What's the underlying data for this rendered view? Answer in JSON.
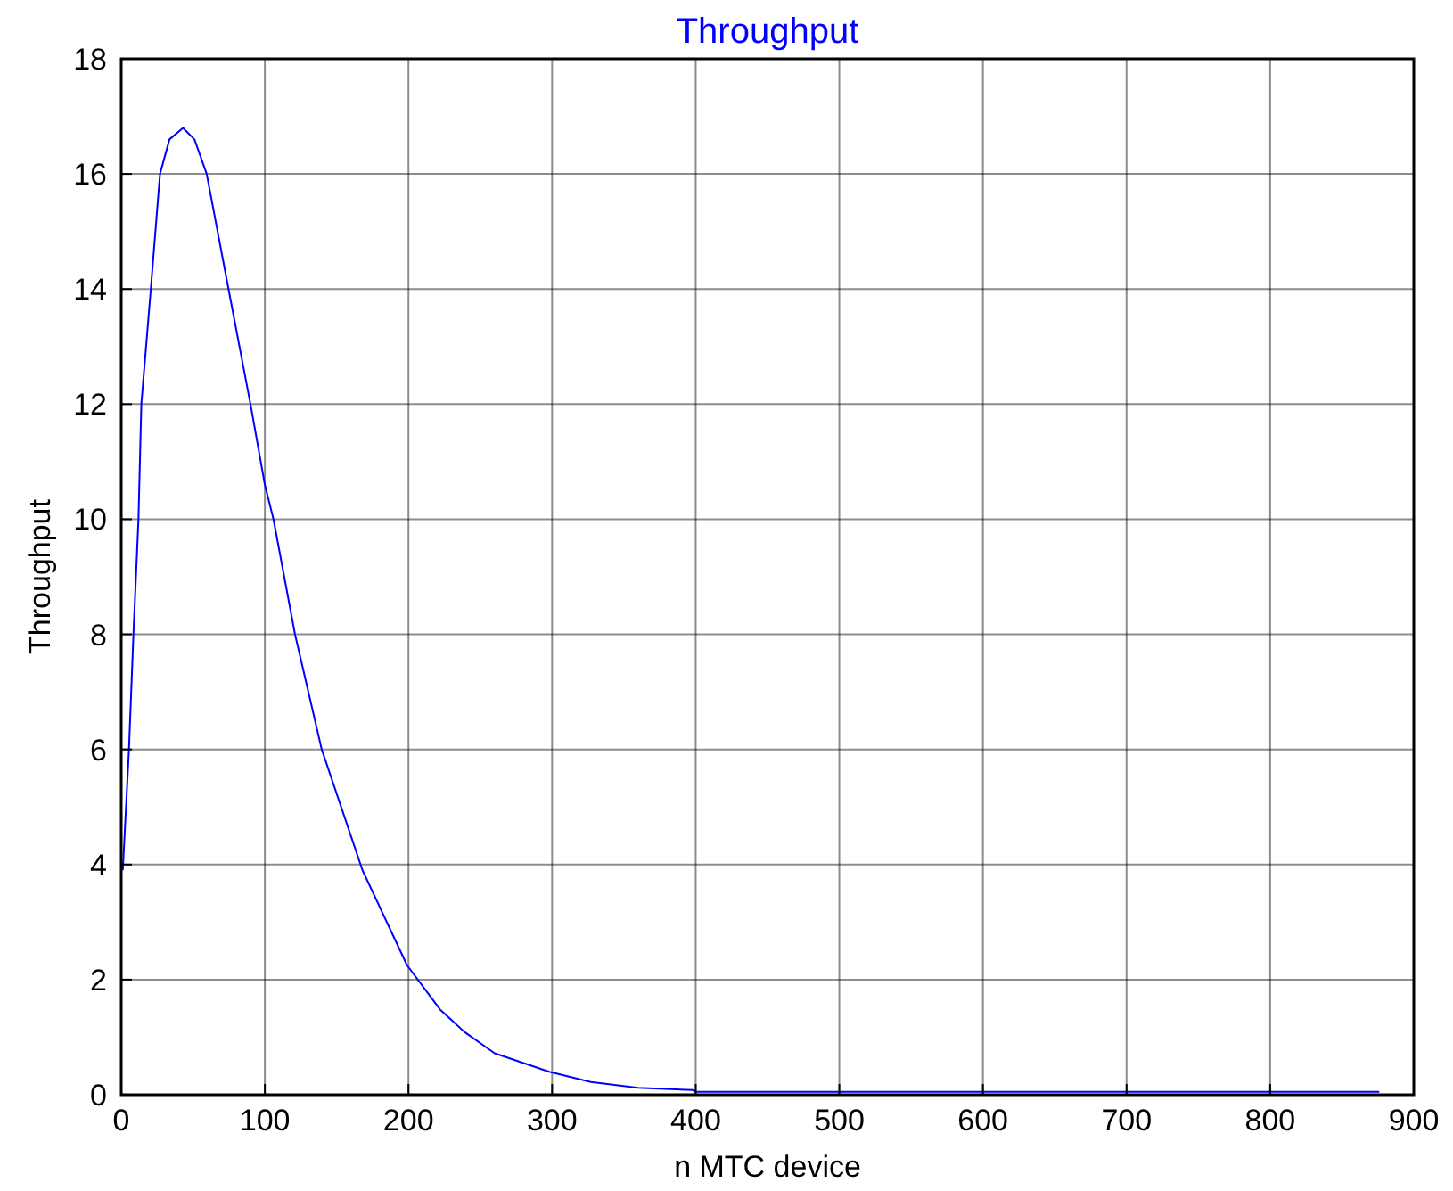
{
  "chart_data": {
    "type": "line",
    "title": "Throughput",
    "xlabel": "n MTC device",
    "ylabel": "Throughput",
    "x": [
      1.1,
      5.4,
      8.5,
      12,
      14,
      20.6,
      27,
      33.6,
      43,
      51,
      59.5,
      74.7,
      90,
      100,
      106,
      121,
      139.6,
      168,
      199,
      222,
      239,
      260,
      298,
      327,
      360,
      398,
      400,
      500,
      600,
      700,
      800,
      876
    ],
    "series": [
      {
        "color": "#0000ff",
        "values": [
          3.9,
          6.0,
          8.0,
          10.0,
          12.0,
          14.0,
          16.0,
          16.6,
          16.8,
          16.6,
          16.0,
          14.0,
          12.0,
          10.6,
          10.0,
          8.0,
          6.0,
          3.9,
          2.25,
          1.48,
          1.09,
          0.72,
          0.4,
          0.22,
          0.12,
          0.08,
          0.05,
          0.05,
          0.05,
          0.05,
          0.05,
          0.05
        ]
      }
    ],
    "xlim": [
      0,
      900
    ],
    "xticks": [
      0,
      100,
      200,
      300,
      400,
      500,
      600,
      700,
      800,
      900
    ],
    "ylim": [
      0,
      18
    ],
    "yticks": [
      0,
      2,
      4,
      6,
      8,
      10,
      12,
      14,
      16,
      18
    ],
    "grid": true,
    "marker": "none",
    "line_style": "solid"
  }
}
